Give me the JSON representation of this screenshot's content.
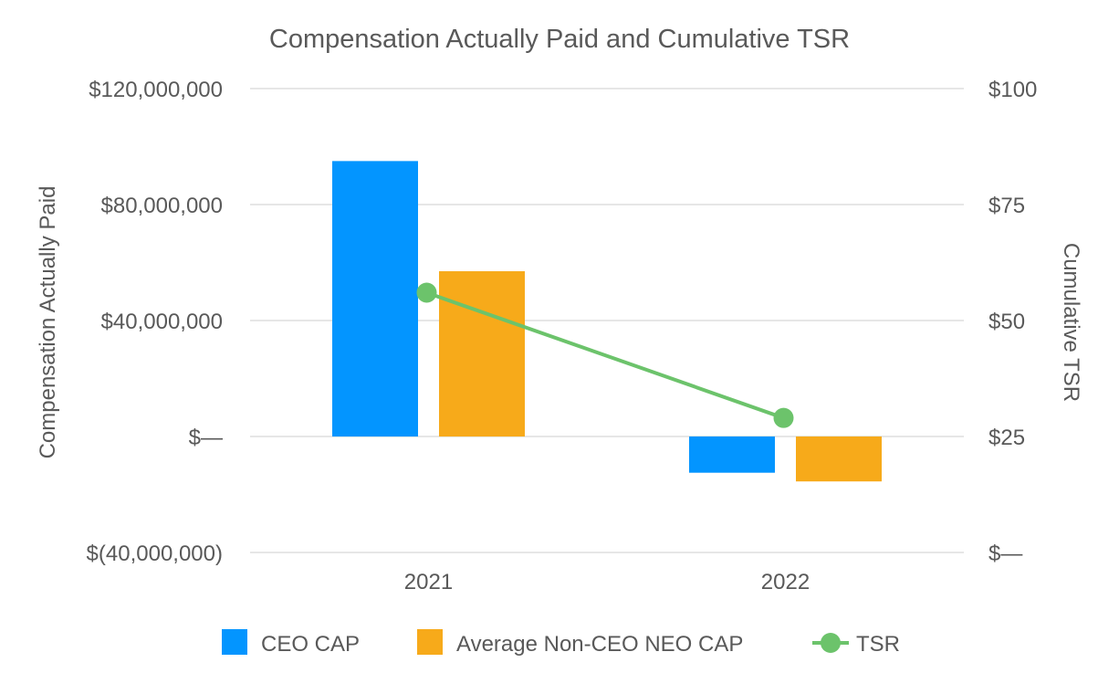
{
  "chart_data": {
    "type": "bar",
    "title": "Compensation Actually Paid and Cumulative TSR",
    "categories": [
      "2021",
      "2022"
    ],
    "series": [
      {
        "name": "CEO CAP",
        "kind": "bar",
        "axis": "left",
        "color": "#0395ff",
        "values": [
          95000000,
          -12500000
        ]
      },
      {
        "name": "Average Non-CEO NEO CAP",
        "kind": "bar",
        "axis": "left",
        "color": "#f7aa1a",
        "values": [
          57000000,
          -15500000
        ]
      },
      {
        "name": "TSR",
        "kind": "line",
        "axis": "right",
        "color": "#6cc36b",
        "values": [
          56,
          29
        ]
      }
    ],
    "y_left": {
      "label": "Compensation Actually Paid",
      "range": [
        -40000000,
        120000000
      ],
      "ticks": [
        -40000000,
        0,
        40000000,
        80000000,
        120000000
      ],
      "tick_labels": [
        "$(40,000,000)",
        "$—",
        "$40,000,000",
        "$80,000,000",
        "$120,000,000"
      ]
    },
    "y_right": {
      "label": "Cumulative TSR",
      "range": [
        0,
        100
      ],
      "ticks": [
        0,
        25,
        50,
        75,
        100
      ],
      "tick_labels": [
        "$—",
        "$25",
        "$50",
        "$75",
        "$100"
      ]
    },
    "grid": true,
    "legend_position": "bottom"
  }
}
